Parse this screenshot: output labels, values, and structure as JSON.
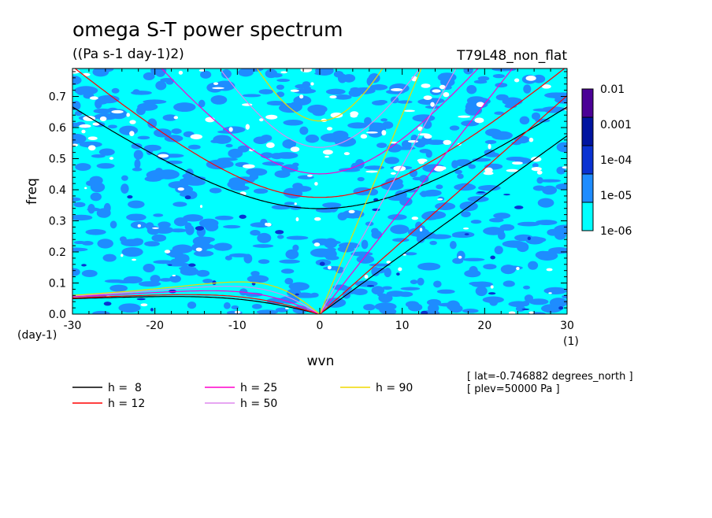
{
  "chart_data": {
    "type": "heatmap",
    "title": "omega S-T power spectrum",
    "subtitle": "((Pa s-1 day-1)2)",
    "run_label": "T79L48_non_flat",
    "xlabel": "wvn",
    "ylabel": "freq",
    "x_unit": "(1)",
    "y_unit": "(day-1)",
    "xlim": [
      -30,
      30
    ],
    "ylim": [
      0,
      0.79
    ],
    "x_ticks": [
      "-30",
      "-20",
      "-10",
      "0",
      "10",
      "20",
      "30"
    ],
    "y_ticks": [
      "0.0",
      "0.1",
      "0.2",
      "0.3",
      "0.4",
      "0.5",
      "0.6",
      "0.7"
    ],
    "colorbar": {
      "labels": [
        "0.01",
        "0.001",
        "1e-04",
        "1e-05",
        "1e-06"
      ],
      "levels": [
        1e-06,
        1e-05,
        0.0001,
        0.001,
        0.01
      ],
      "colors": [
        "#00ffff",
        "#1e8cff",
        "#0a32d2",
        "#0014a0",
        "#4b0096"
      ]
    },
    "field_colors": {
      "background": "#00ffff",
      "patch": "#1e8cff",
      "strong": "#0a32d2",
      "gap": "#ffffff"
    },
    "dispersion_curves": [
      {
        "h": 8,
        "label": "h =  8",
        "color": "#000000"
      },
      {
        "h": 12,
        "label": "h = 12",
        "color": "#ff0000"
      },
      {
        "h": 25,
        "label": "h = 25",
        "color": "#ff00cc"
      },
      {
        "h": 50,
        "label": "h = 50",
        "color": "#dd88ee"
      },
      {
        "h": 90,
        "label": "h = 90",
        "color": "#f0d800"
      }
    ],
    "info_lines": [
      "[ lat=-0.746882 degrees_north ]",
      "[ plev=50000 Pa ]"
    ]
  }
}
